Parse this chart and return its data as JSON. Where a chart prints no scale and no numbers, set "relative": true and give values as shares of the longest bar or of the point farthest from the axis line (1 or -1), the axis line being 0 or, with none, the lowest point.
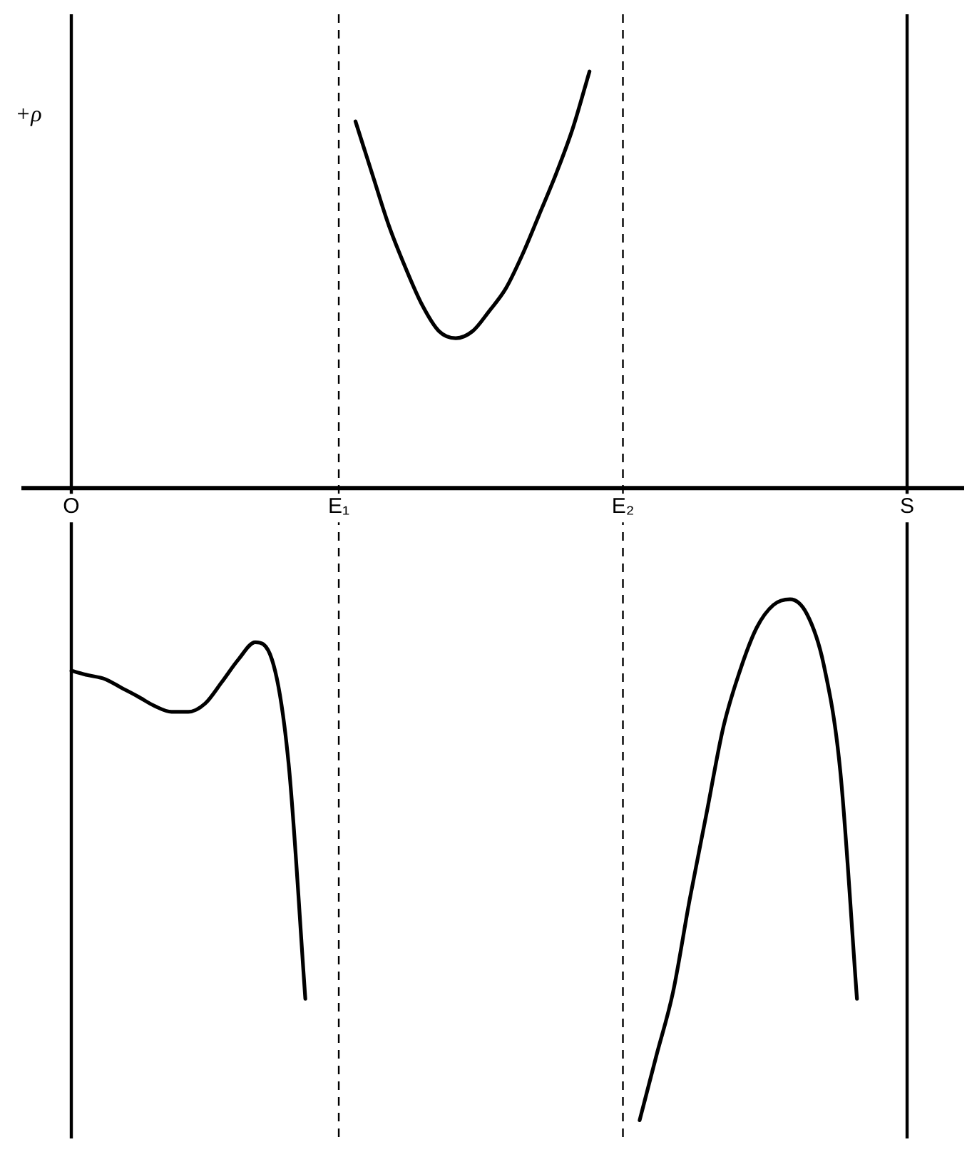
{
  "chart_data": {
    "type": "line",
    "relative": true,
    "ylabel": "+ρ",
    "legend": false,
    "marker": "none",
    "line_style": "solid",
    "categories": [
      "O",
      null,
      null,
      null,
      null,
      null,
      null,
      null,
      null,
      null,
      null,
      null,
      null,
      null,
      null,
      null,
      "E₁",
      null,
      null,
      null,
      null,
      null,
      null,
      null,
      null,
      null,
      null,
      null,
      null,
      null,
      null,
      null,
      null,
      "E₂",
      null,
      null,
      null,
      null,
      null,
      null,
      null,
      null,
      null,
      null,
      null,
      null,
      null,
      null,
      null,
      null,
      "S"
    ],
    "ref_lines": [
      {
        "axis": "x",
        "value": "O",
        "color": "#000000",
        "line_style": "solid"
      },
      {
        "axis": "x",
        "value": "E₁",
        "color": "#000000",
        "line_style": "dashed"
      },
      {
        "axis": "x",
        "value": "E₂",
        "color": "#000000",
        "line_style": "dashed"
      },
      {
        "axis": "x",
        "value": "S",
        "color": "#000000",
        "line_style": "solid"
      }
    ],
    "series": [
      {
        "color": "#000000",
        "values": [
          -0.289,
          -0.296,
          -0.302,
          -0.316,
          -0.33,
          -0.345,
          -0.354,
          -0.354,
          -0.341,
          -0.307,
          -0.271,
          -0.244,
          -0.271,
          -0.436,
          -0.808,
          null,
          null,
          null,
          null,
          null,
          null,
          null,
          null,
          null,
          null,
          null,
          null,
          null,
          null,
          null,
          null,
          null,
          null,
          null,
          null,
          null,
          null,
          null,
          null,
          null,
          null,
          null,
          null,
          null,
          null,
          null,
          null,
          null,
          null,
          null,
          null
        ]
      },
      {
        "color": "#000000",
        "values": [
          null,
          null,
          null,
          null,
          null,
          null,
          null,
          null,
          null,
          null,
          null,
          null,
          null,
          null,
          null,
          null,
          null,
          0.58,
          0.497,
          0.415,
          0.348,
          0.289,
          0.248,
          0.237,
          0.248,
          0.28,
          0.316,
          0.37,
          0.433,
          0.497,
          0.569,
          0.659,
          null,
          null,
          null,
          null,
          null,
          null,
          null,
          null,
          null,
          null,
          null,
          null,
          null,
          null,
          null,
          null,
          null,
          null,
          null
        ]
      },
      {
        "color": "#000000",
        "values": [
          null,
          null,
          null,
          null,
          null,
          null,
          null,
          null,
          null,
          null,
          null,
          null,
          null,
          null,
          null,
          null,
          null,
          null,
          null,
          null,
          null,
          null,
          null,
          null,
          null,
          null,
          null,
          null,
          null,
          null,
          null,
          null,
          null,
          null,
          -1,
          -0.898,
          -0.797,
          -0.65,
          -0.515,
          -0.379,
          -0.289,
          -0.221,
          -0.185,
          -0.176,
          -0.199,
          -0.278,
          -0.447,
          -0.808,
          null,
          null,
          null
        ]
      }
    ]
  }
}
